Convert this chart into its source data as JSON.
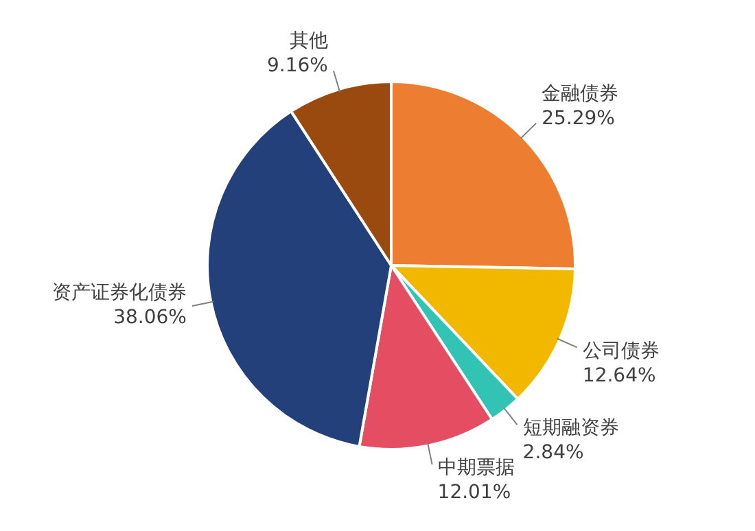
{
  "chart_data": {
    "type": "pie",
    "categories": [
      "金融债券",
      "公司债券",
      "短期融资券",
      "中期票据",
      "资产证券化债券",
      "其他"
    ],
    "values": [
      25.29,
      12.64,
      2.84,
      12.01,
      38.06,
      9.16
    ],
    "colors": [
      "#ed7d31",
      "#f2b800",
      "#33c3b5",
      "#e54d63",
      "#24407b",
      "#9b4a0f"
    ],
    "value_labels": [
      "25.29%",
      "12.64%",
      "2.84%",
      "12.01%",
      "38.06%",
      "9.16%"
    ],
    "legend": false
  }
}
